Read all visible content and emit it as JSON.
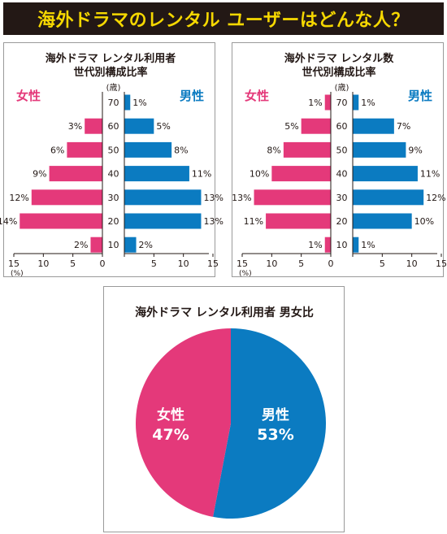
{
  "page_title": "海外ドラマのレンタル ユーザーはどんな人？",
  "colors": {
    "female": "#e4397a",
    "male": "#0b7bc1",
    "banner_bg": "#231815",
    "banner_text": "#f6d800"
  },
  "chart_data": [
    {
      "type": "bar",
      "orientation": "horizontal-population-pyramid",
      "title": "海外ドラマ レンタル利用者\n世代別構成比率",
      "age_unit_label": "(歳)",
      "categories": [
        "70",
        "60",
        "50",
        "40",
        "30",
        "20",
        "10"
      ],
      "left_label": "女性",
      "right_label": "男性",
      "series": [
        {
          "name": "女性",
          "values": [
            null,
            3,
            6,
            9,
            12,
            14,
            2
          ]
        },
        {
          "name": "男性",
          "values": [
            1,
            5,
            8,
            11,
            13,
            13,
            2
          ]
        }
      ],
      "value_labels": {
        "女性": [
          "",
          "3%",
          "6%",
          "9%",
          "12%",
          "14%",
          "2%"
        ],
        "男性": [
          "1%",
          "5%",
          "8%",
          "11%",
          "13%",
          "13%",
          "2%"
        ]
      },
      "xlim": [
        0,
        15
      ],
      "xticks": [
        "15",
        "10",
        "5",
        "0",
        "5",
        "10",
        "15"
      ],
      "x_unit_label": "(%)"
    },
    {
      "type": "bar",
      "orientation": "horizontal-population-pyramid",
      "title": "海外ドラマ レンタル数\n世代別構成比率",
      "age_unit_label": "(歳)",
      "categories": [
        "70",
        "60",
        "50",
        "40",
        "30",
        "20",
        "10"
      ],
      "left_label": "女性",
      "right_label": "男性",
      "series": [
        {
          "name": "女性",
          "values": [
            1,
            5,
            8,
            10,
            13,
            11,
            1
          ]
        },
        {
          "name": "男性",
          "values": [
            1,
            7,
            9,
            11,
            12,
            10,
            1
          ]
        }
      ],
      "value_labels": {
        "女性": [
          "1%",
          "5%",
          "8%",
          "10%",
          "13%",
          "11%",
          "1%"
        ],
        "男性": [
          "1%",
          "7%",
          "9%",
          "11%",
          "12%",
          "10%",
          "1%"
        ]
      },
      "xlim": [
        0,
        15
      ],
      "xticks": [
        "15",
        "10",
        "5",
        "0",
        "5",
        "10",
        "15"
      ],
      "x_unit_label": "(%)"
    },
    {
      "type": "pie",
      "title": "海外ドラマ レンタル利用者 男女比",
      "slices": [
        {
          "name": "女性",
          "label": "女性",
          "value_label": "47%",
          "value": 47
        },
        {
          "name": "男性",
          "label": "男性",
          "value_label": "53%",
          "value": 53
        }
      ]
    }
  ]
}
